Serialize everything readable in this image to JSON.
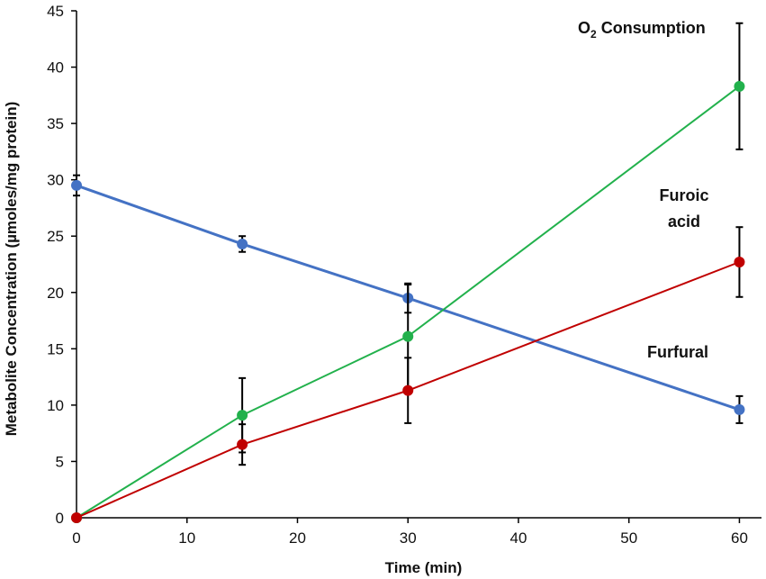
{
  "chart_data": {
    "type": "line",
    "title": "",
    "xlabel": "Time (min)",
    "ylabel": "Metabolite Concentration (µmoles/mg protein)",
    "xlim": [
      0,
      62
    ],
    "ylim": [
      0,
      45
    ],
    "xticks": [
      0,
      10,
      20,
      30,
      40,
      50,
      60
    ],
    "yticks": [
      0,
      5,
      10,
      15,
      20,
      25,
      30,
      35,
      40,
      45
    ],
    "grid": false,
    "series": [
      {
        "name": "Furfural",
        "color": "#4472C4",
        "x": [
          0,
          15,
          30,
          60
        ],
        "values": [
          29.5,
          24.3,
          19.5,
          9.6
        ],
        "errors": [
          0.9,
          0.7,
          1.3,
          1.2
        ]
      },
      {
        "name": "O2 Consumption",
        "color": "#22B14C",
        "x": [
          0,
          15,
          30,
          60
        ],
        "values": [
          0,
          9.1,
          16.1,
          38.3
        ],
        "errors": [
          0,
          3.3,
          4.6,
          5.6
        ]
      },
      {
        "name": "Furoic acid",
        "color": "#C00000",
        "x": [
          0,
          15,
          30,
          60
        ],
        "values": [
          0,
          6.5,
          11.3,
          22.7
        ],
        "errors": [
          0,
          1.8,
          2.9,
          3.1
        ]
      }
    ],
    "annotations": [
      {
        "name": "annotation-o2-consumption",
        "lines": [
          "O",
          "2",
          " Consumption"
        ],
        "text": "O2 Consumption"
      },
      {
        "name": "annotation-furoic-acid-line1",
        "text": "Furoic"
      },
      {
        "name": "annotation-furoic-acid-line2",
        "text": "acid"
      },
      {
        "name": "annotation-furfural",
        "text": "Furfural"
      }
    ]
  }
}
